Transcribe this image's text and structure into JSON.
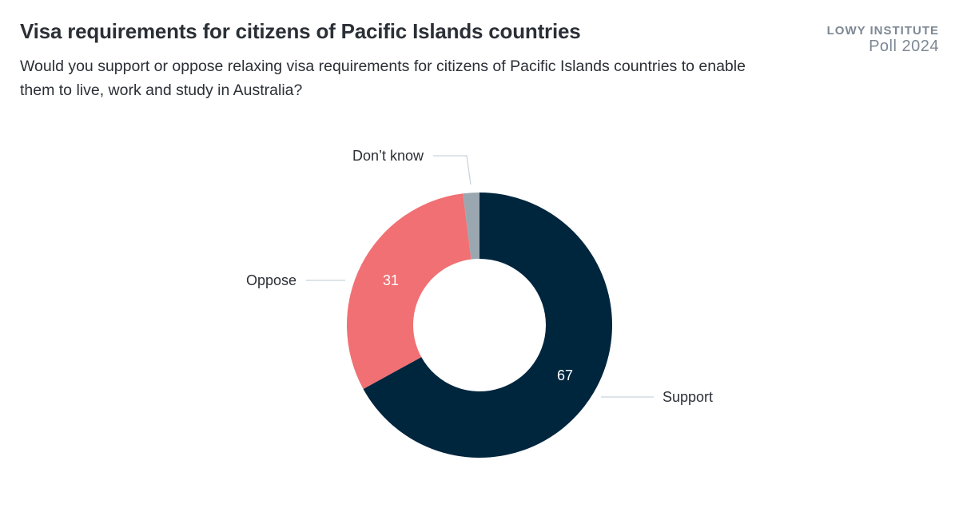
{
  "header": {
    "title": "Visa requirements for citizens of Pacific Islands countries",
    "subtitle": "Would you support or oppose relaxing visa requirements for citizens of Pacific Islands countries to enable them to live, work and study in Australia?",
    "brand_line1": "LOWY INSTITUTE",
    "brand_line2": "Poll 2024"
  },
  "chart_data": {
    "type": "pie",
    "subtype": "donut",
    "title": "Visa requirements for citizens of Pacific Islands countries",
    "subtitle": "Would you support or oppose relaxing visa requirements for citizens of Pacific Islands countries to enable them to live, work and study in Australia?",
    "categories": [
      "Support",
      "Oppose",
      "Don’t know"
    ],
    "values": [
      67,
      31,
      2
    ],
    "colors": [
      "#00263e",
      "#f07073",
      "#9aa7b0"
    ],
    "data_labels": [
      "67",
      "31",
      ""
    ],
    "legend": "none (direct leader-line labels)",
    "units": "%"
  },
  "labels": {
    "support": "Support",
    "oppose": "Oppose",
    "dontknow": "Don’t know",
    "support_value": "67",
    "oppose_value": "31"
  }
}
